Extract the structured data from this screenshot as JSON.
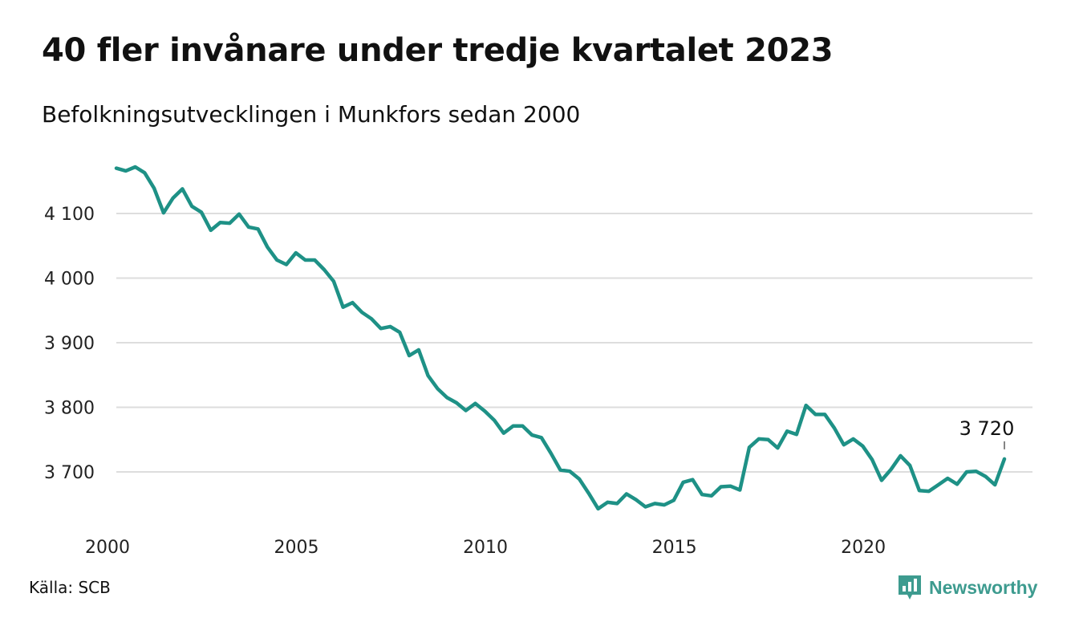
{
  "header": {
    "title": "40 fler invånare under tredje kvartalet 2023",
    "subtitle": "Befolkningsutvecklingen i Munkfors sedan 2000"
  },
  "footer": {
    "source": "Källa: SCB",
    "brand": "Newsworthy",
    "brand_icon": "bar-chart-speech-bubble-icon"
  },
  "colors": {
    "line": "#1e9186",
    "grid": "#dddddd",
    "brand": "#3d9b8f"
  },
  "chart_data": {
    "type": "line",
    "title": "40 fler invånare under tredje kvartalet 2023",
    "subtitle": "Befolkningsutvecklingen i Munkfors sedan 2000",
    "x_unit": "year (quarterly)",
    "x": [
      2000.0,
      2000.25,
      2000.5,
      2000.75,
      2001.0,
      2001.25,
      2001.5,
      2001.75,
      2002.0,
      2002.25,
      2002.5,
      2002.75,
      2003.0,
      2003.25,
      2003.5,
      2003.75,
      2004.0,
      2004.25,
      2004.5,
      2004.75,
      2005.0,
      2005.25,
      2005.5,
      2005.75,
      2006.0,
      2006.25,
      2006.5,
      2006.75,
      2007.0,
      2007.25,
      2007.5,
      2007.75,
      2008.0,
      2008.25,
      2008.5,
      2008.75,
      2009.0,
      2009.25,
      2009.5,
      2009.75,
      2010.0,
      2010.25,
      2010.5,
      2010.75,
      2011.0,
      2011.25,
      2011.5,
      2011.75,
      2012.0,
      2012.25,
      2012.5,
      2012.75,
      2013.0,
      2013.25,
      2013.5,
      2013.75,
      2014.0,
      2014.25,
      2014.5,
      2014.75,
      2015.0,
      2015.25,
      2015.5,
      2015.75,
      2016.0,
      2016.25,
      2016.5,
      2016.75,
      2017.0,
      2017.25,
      2017.5,
      2017.75,
      2018.0,
      2018.25,
      2018.5,
      2018.75,
      2019.0,
      2019.25,
      2019.5,
      2019.75,
      2020.0,
      2020.25,
      2020.5,
      2020.75,
      2021.0,
      2021.25,
      2021.5,
      2021.75,
      2022.0,
      2022.25,
      2022.5,
      2022.75,
      2023.0,
      2023.25,
      2023.5
    ],
    "series": [
      {
        "values": [
          4170,
          4166,
          4172,
          4163,
          4139,
          4101,
          4124,
          4138,
          4111,
          4102,
          4074,
          4086,
          4085,
          4099,
          4079,
          4076,
          4048,
          4028,
          4021,
          4039,
          4028,
          4028,
          4013,
          3995,
          3955,
          3962,
          3947,
          3937,
          3922,
          3925,
          3916,
          3880,
          3889,
          3849,
          3829,
          3815,
          3807,
          3795,
          3806,
          3794,
          3780,
          3760,
          3771,
          3771,
          3757,
          3753,
          3729,
          3703,
          3701,
          3689,
          3667,
          3643,
          3653,
          3651,
          3666,
          3657,
          3646,
          3651,
          3649,
          3656,
          3684,
          3688,
          3665,
          3663,
          3677,
          3678,
          3672,
          3738,
          3751,
          3750,
          3737,
          3763,
          3758,
          3803,
          3789,
          3789,
          3768,
          3742,
          3751,
          3740,
          3719,
          3687,
          3704,
          3725,
          3710,
          3671,
          3670,
          3680,
          3690,
          3681,
          3700,
          3701,
          3693,
          3680,
          3720
        ]
      }
    ],
    "yticks": [
      3700,
      3800,
      3900,
      4000,
      4100
    ],
    "ytick_labels": [
      "3 700",
      "3 800",
      "3 900",
      "4 000",
      "4 100"
    ],
    "xticks": [
      2000,
      2005,
      2010,
      2015,
      2020
    ],
    "xtick_labels": [
      "2000",
      "2005",
      "2010",
      "2015",
      "2020"
    ],
    "ylim": [
      3635,
      4185
    ],
    "xlim": [
      2000,
      2023.5
    ],
    "grid": "horizontal",
    "end_label": "3 720"
  }
}
